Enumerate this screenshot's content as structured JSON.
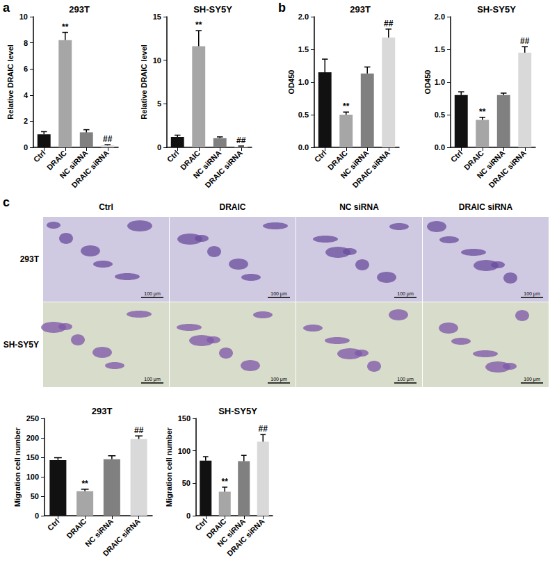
{
  "chart_data": [
    {
      "type": "bar",
      "title": "293T",
      "y_label": "Relative DRAIC level",
      "categories": [
        "Ctrl",
        "DRAIC",
        "NC siRNA",
        "DRAIC siRNA"
      ],
      "values": [
        1.0,
        8.2,
        1.15,
        0.15
      ],
      "errors": [
        0.2,
        0.6,
        0.2,
        0.05
      ],
      "colors": [
        "#111111",
        "#a6a6a6",
        "#808080",
        "#d9d9d9"
      ],
      "ylim": [
        0,
        10
      ],
      "yticks": [
        0,
        2,
        4,
        6,
        8,
        10
      ],
      "grid": false,
      "annotations": [
        {
          "category": "DRAIC",
          "text": "**"
        },
        {
          "category": "DRAIC siRNA",
          "text": "##"
        }
      ]
    },
    {
      "type": "bar",
      "title": "SH-SY5Y",
      "y_label": "Relative DRAIC level",
      "categories": [
        "Ctrl",
        "DRAIC",
        "NC siRNA",
        "DRAIC siRNA"
      ],
      "values": [
        1.2,
        11.6,
        1.05,
        0.1
      ],
      "errors": [
        0.2,
        1.8,
        0.15,
        0.05
      ],
      "colors": [
        "#111111",
        "#a6a6a6",
        "#808080",
        "#d9d9d9"
      ],
      "ylim": [
        0,
        15
      ],
      "yticks": [
        0,
        5,
        10,
        15
      ],
      "grid": false,
      "annotations": [
        {
          "category": "DRAIC",
          "text": "**"
        },
        {
          "category": "DRAIC siRNA",
          "text": "##"
        }
      ]
    },
    {
      "type": "bar",
      "title": "293T",
      "y_label": "OD450",
      "categories": [
        "Ctrl",
        "DRAIC",
        "NC siRNA",
        "DRAIC siRNA"
      ],
      "values": [
        1.15,
        0.5,
        1.13,
        1.68
      ],
      "errors": [
        0.2,
        0.04,
        0.1,
        0.13
      ],
      "colors": [
        "#111111",
        "#a6a6a6",
        "#808080",
        "#d9d9d9"
      ],
      "ylim": [
        0,
        2.0
      ],
      "yticks": [
        {
          "value": 0,
          "label": "0.0"
        },
        {
          "value": 0.5,
          "label": "0.5"
        },
        {
          "value": 1.0,
          "label": "1.0"
        },
        {
          "value": 1.5,
          "label": "1.5"
        },
        {
          "value": 2.0,
          "label": "2.0"
        }
      ],
      "grid": false,
      "annotations": [
        {
          "category": "DRAIC",
          "text": "**"
        },
        {
          "category": "DRAIC siRNA",
          "text": "##"
        }
      ]
    },
    {
      "type": "bar",
      "title": "SH-SY5Y",
      "y_label": "OD450",
      "categories": [
        "Ctrl",
        "DRAIC",
        "NC siRNA",
        "DRAIC siRNA"
      ],
      "values": [
        0.8,
        0.42,
        0.8,
        1.45
      ],
      "errors": [
        0.05,
        0.04,
        0.03,
        0.09
      ],
      "colors": [
        "#111111",
        "#a6a6a6",
        "#808080",
        "#d9d9d9"
      ],
      "ylim": [
        0,
        2.0
      ],
      "yticks": [
        {
          "value": 0,
          "label": "0.0"
        },
        {
          "value": 0.5,
          "label": "0.5"
        },
        {
          "value": 1.0,
          "label": "1.0"
        },
        {
          "value": 1.5,
          "label": "1.5"
        },
        {
          "value": 2.0,
          "label": "2.0"
        }
      ],
      "grid": false,
      "annotations": [
        {
          "category": "DRAIC",
          "text": "**"
        },
        {
          "category": "DRAIC siRNA",
          "text": "##"
        }
      ]
    },
    {
      "type": "bar",
      "title": "293T",
      "y_label": "Migration cell number",
      "categories": [
        "Ctrl",
        "DRAIC",
        "NC siRNA",
        "DRAIC siRNA"
      ],
      "values": [
        143,
        63,
        145,
        197
      ],
      "errors": [
        6,
        5,
        9,
        8
      ],
      "colors": [
        "#111111",
        "#a6a6a6",
        "#808080",
        "#d9d9d9"
      ],
      "ylim": [
        0,
        250
      ],
      "yticks": [
        0,
        50,
        100,
        150,
        200,
        250
      ],
      "grid": false,
      "annotations": [
        {
          "category": "DRAIC",
          "text": "**"
        },
        {
          "category": "DRAIC siRNA",
          "text": "##"
        }
      ]
    },
    {
      "type": "bar",
      "title": "SH-SY5Y",
      "y_label": "Migration cell number",
      "categories": [
        "Ctrl",
        "DRAIC",
        "NC siRNA",
        "DRAIC siRNA"
      ],
      "values": [
        85,
        37,
        84,
        114
      ],
      "errors": [
        6,
        7,
        9,
        11
      ],
      "colors": [
        "#111111",
        "#a6a6a6",
        "#808080",
        "#d9d9d9"
      ],
      "ylim": [
        0,
        150
      ],
      "yticks": [
        0,
        50,
        100,
        150
      ],
      "grid": false,
      "annotations": [
        {
          "category": "DRAIC",
          "text": "**"
        },
        {
          "category": "DRAIC siRNA",
          "text": "##"
        }
      ]
    }
  ],
  "panel_labels": [
    "a",
    "b",
    "c"
  ],
  "image_grid": {
    "columns": [
      "Ctrl",
      "DRAIC",
      "NC siRNA",
      "DRAIC siRNA"
    ],
    "rows": [
      "293T",
      "SH-SY5Y"
    ],
    "scale_bar": "100 μm"
  }
}
